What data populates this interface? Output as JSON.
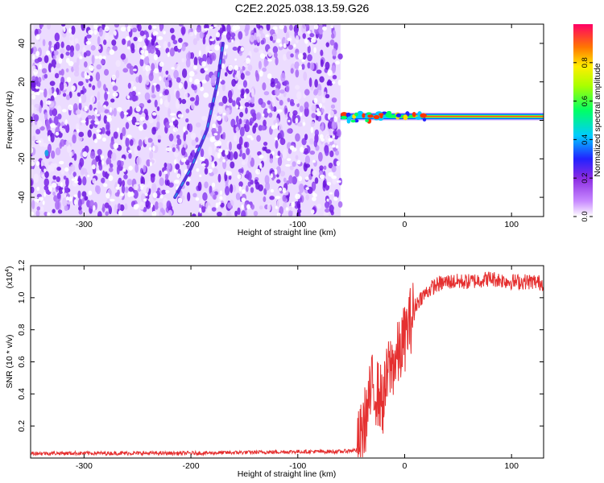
{
  "title": "C2E2.2025.038.13.59.G26",
  "chart_data": [
    {
      "type": "heatmap",
      "xlabel": "Height of straight line (km)",
      "ylabel": "Frequency (Hz)",
      "xlim": [
        -350,
        130
      ],
      "ylim": [
        -50,
        50
      ],
      "xticks": [
        -300,
        -200,
        -100,
        0,
        100
      ],
      "yticks": [
        -40,
        -20,
        0,
        20,
        40
      ],
      "colorbar": {
        "label": "Normalized spectral amplitude",
        "range": [
          0.0,
          1.0
        ],
        "ticks": [
          "0.0",
          "0.2",
          "0.4",
          "0.6",
          "0.8"
        ],
        "tick_values": [
          0.0,
          0.2,
          0.4,
          0.6,
          0.8
        ],
        "colormap": "rainbow"
      },
      "features": {
        "noise_region_x": [
          -350,
          -60
        ],
        "signal_line": {
          "x": [
            -60,
            130
          ],
          "frequency": 2
        },
        "drifting_trace": [
          [
            -215,
            -40
          ],
          [
            -200,
            -25
          ],
          [
            -185,
            -5
          ],
          [
            -175,
            20
          ],
          [
            -170,
            40
          ]
        ]
      }
    },
    {
      "type": "line",
      "xlabel": "Height of straight line (km)",
      "ylabel": "SNR (10 * v/v)",
      "y_scale_label": "(x10",
      "y_scale_exponent": "4",
      "xlim": [
        -350,
        130
      ],
      "ylim": [
        0,
        1.2
      ],
      "xticks": [
        -300,
        -200,
        -100,
        0,
        100
      ],
      "yticks": [
        0.2,
        0.4,
        0.6,
        0.8,
        1.0,
        1.2
      ],
      "ytick_labels": [
        "0.2",
        "0.4",
        "0.6",
        "0.8",
        "1.0",
        "1.2"
      ],
      "color": "#e53030",
      "series": [
        {
          "x": [
            -350,
            -200,
            -100,
            -60,
            -45,
            -40,
            -35,
            -30,
            -25,
            -20,
            -15,
            -10,
            -5,
            0,
            5,
            10,
            15,
            20,
            25,
            30,
            40,
            60,
            80,
            100,
            120,
            130
          ],
          "values": [
            0.03,
            0.03,
            0.04,
            0.04,
            0.05,
            0.15,
            0.3,
            0.45,
            0.4,
            0.35,
            0.55,
            0.6,
            0.65,
            0.75,
            0.85,
            0.95,
            1.0,
            1.03,
            1.06,
            1.08,
            1.1,
            1.1,
            1.12,
            1.1,
            1.1,
            1.09
          ]
        }
      ]
    }
  ]
}
